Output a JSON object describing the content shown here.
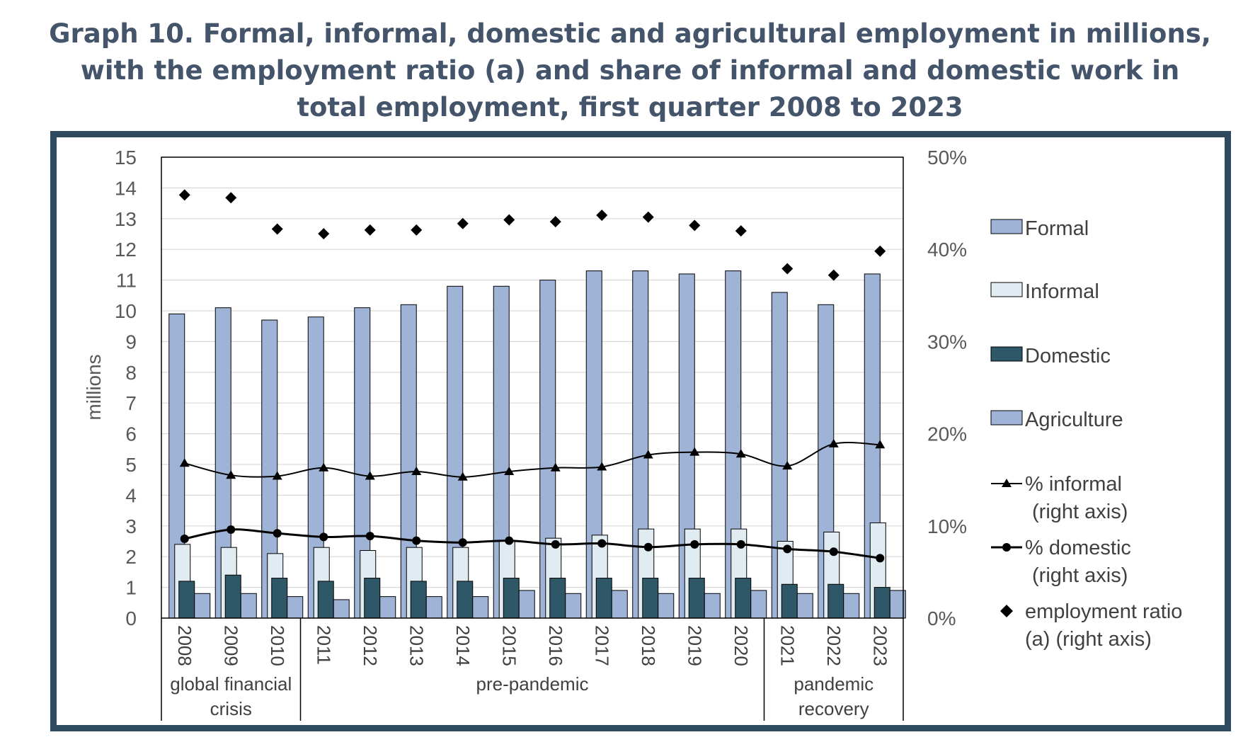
{
  "title_lines": [
    "Graph 10. Formal, informal, domestic and agricultural employment in millions,",
    "with the employment ratio (a) and share of informal and domestic work in",
    "total employment, first quarter 2008 to 2023"
  ],
  "colors": {
    "title": "#44546a",
    "frame": "#2d4a5e",
    "formal": "#9fb3d7",
    "informal": "#e1ebf2",
    "domestic": "#2e5867",
    "agriculture": "#9fb3d7",
    "lines": "#000000"
  },
  "chart_data": {
    "type": "bar",
    "categories": [
      "2008",
      "2009",
      "2010",
      "2011",
      "2012",
      "2013",
      "2014",
      "2015",
      "2016",
      "2017",
      "2018",
      "2019",
      "2020",
      "2021",
      "2022",
      "2023"
    ],
    "series": [
      {
        "name": "Formal",
        "kind": "bar",
        "axis": "left",
        "values": [
          9.9,
          10.1,
          9.7,
          9.8,
          10.1,
          10.2,
          10.8,
          10.8,
          11.0,
          11.3,
          11.3,
          11.2,
          11.3,
          10.6,
          10.2,
          11.2
        ]
      },
      {
        "name": "Informal",
        "kind": "bar",
        "axis": "left",
        "values": [
          2.4,
          2.3,
          2.1,
          2.3,
          2.2,
          2.3,
          2.3,
          2.5,
          2.6,
          2.7,
          2.9,
          2.9,
          2.9,
          2.5,
          2.8,
          3.1
        ]
      },
      {
        "name": "Domestic",
        "kind": "bar",
        "axis": "left",
        "values": [
          1.2,
          1.4,
          1.3,
          1.2,
          1.3,
          1.2,
          1.2,
          1.3,
          1.3,
          1.3,
          1.3,
          1.3,
          1.3,
          1.1,
          1.1,
          1.0
        ]
      },
      {
        "name": "Agriculture",
        "kind": "bar",
        "axis": "left",
        "values": [
          0.8,
          0.8,
          0.7,
          0.6,
          0.7,
          0.7,
          0.7,
          0.9,
          0.8,
          0.9,
          0.8,
          0.8,
          0.9,
          0.8,
          0.8,
          0.9
        ]
      },
      {
        "name": "% informal\n(right axis)",
        "kind": "line-triangle",
        "axis": "right",
        "values": [
          16.8,
          15.5,
          15.4,
          16.3,
          15.4,
          15.9,
          15.3,
          15.9,
          16.3,
          16.4,
          17.7,
          18.0,
          17.8,
          16.5,
          18.9,
          18.8
        ]
      },
      {
        "name": "% domestic\n(right axis)",
        "kind": "line-circle",
        "axis": "right",
        "values": [
          8.6,
          9.6,
          9.2,
          8.8,
          8.9,
          8.4,
          8.2,
          8.4,
          8.0,
          8.1,
          7.7,
          8.0,
          8.0,
          7.5,
          7.2,
          6.5
        ]
      },
      {
        "name": "employment ratio\n(a) (right axis)",
        "kind": "marker-diamond",
        "axis": "right",
        "values": [
          45.9,
          45.6,
          42.2,
          41.7,
          42.1,
          42.1,
          42.8,
          43.2,
          43.0,
          43.7,
          43.5,
          42.6,
          42.0,
          37.9,
          37.2,
          39.8
        ]
      }
    ],
    "y_left": {
      "label": "millions",
      "lim": [
        0,
        15
      ],
      "ticks": [
        "0",
        "1",
        "2",
        "3",
        "4",
        "5",
        "6",
        "7",
        "8",
        "9",
        "10",
        "11",
        "12",
        "13",
        "14",
        "15"
      ]
    },
    "y_right": {
      "label": "",
      "lim": [
        0,
        50
      ],
      "ticks": [
        "0%",
        "10%",
        "20%",
        "30%",
        "40%",
        "50%"
      ]
    },
    "periods": [
      {
        "label": "global financial\ncrisis",
        "from": 0,
        "to": 2
      },
      {
        "label": "pre-pandemic",
        "from": 3,
        "to": 12
      },
      {
        "label": "pandemic\nrecovery",
        "from": 13,
        "to": 15
      }
    ],
    "grid": true,
    "legend_position": "right"
  }
}
